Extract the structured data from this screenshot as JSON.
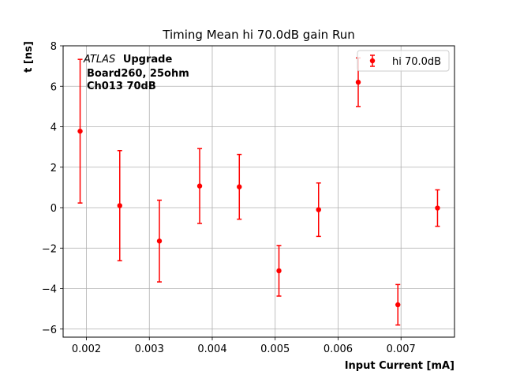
{
  "chart_data": {
    "type": "scatter",
    "title": "Timing Mean hi 70.0dB gain Run",
    "xlabel": "Input Current [mA]",
    "ylabel": "t [ns]",
    "xlim": [
      0.00163,
      0.00785
    ],
    "ylim": [
      -6.4,
      8.0
    ],
    "xticks": [
      0.002,
      0.003,
      0.004,
      0.005,
      0.006,
      0.007
    ],
    "xtick_labels": [
      "0.002",
      "0.003",
      "0.004",
      "0.005",
      "0.006",
      "0.007"
    ],
    "yticks": [
      -6,
      -4,
      -2,
      0,
      2,
      4,
      6,
      8
    ],
    "ytick_labels": [
      "−6",
      "−4",
      "−2",
      "0",
      "2",
      "4",
      "6",
      "8"
    ],
    "grid": true,
    "legend_position": "top-right",
    "annotation": {
      "line1_italic": "ATLAS",
      "line1_bold": "Upgrade",
      "line2": "Board260, 25ohm",
      "line3": "Ch013 70dB"
    },
    "series": [
      {
        "name": "hi 70.0dB",
        "color": "#ff0000",
        "points": [
          {
            "x": 0.0019,
            "y": 3.78,
            "err": 3.55
          },
          {
            "x": 0.00253,
            "y": 0.1,
            "err": 2.72
          },
          {
            "x": 0.00316,
            "y": -1.65,
            "err": 2.02
          },
          {
            "x": 0.0038,
            "y": 1.07,
            "err": 1.85
          },
          {
            "x": 0.00443,
            "y": 1.03,
            "err": 1.6
          },
          {
            "x": 0.00506,
            "y": -3.12,
            "err": 1.25
          },
          {
            "x": 0.00569,
            "y": -0.1,
            "err": 1.32
          },
          {
            "x": 0.00632,
            "y": 6.2,
            "err": 1.2
          },
          {
            "x": 0.00695,
            "y": -4.8,
            "err": 1.0
          },
          {
            "x": 0.00758,
            "y": -0.02,
            "err": 0.9
          }
        ]
      }
    ]
  }
}
